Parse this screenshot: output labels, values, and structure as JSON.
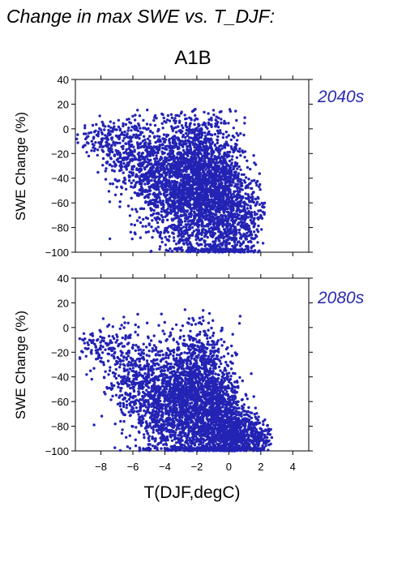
{
  "figure": {
    "title": "Change in max SWE vs. T_DJF:",
    "scenario": "A1B"
  },
  "colors": {
    "points": "#2323b4",
    "period_label": "#2a2ab0",
    "axes": "#000000"
  },
  "chart_data": [
    {
      "type": "scatter",
      "period": "2040s",
      "xlabel": "",
      "ylabel": "SWE Change (%)",
      "xlim": [
        -9.6,
        5.0
      ],
      "ylim": [
        -100,
        40
      ],
      "xticks": [
        -8,
        -6,
        -4,
        -2,
        0,
        2,
        4
      ],
      "yticks": [
        -100,
        -80,
        -60,
        -40,
        -20,
        0,
        20,
        40
      ],
      "grid": false,
      "series": [
        {
          "clusters": [
            {
              "x": -7.8,
              "y": -8,
              "sx": 0.9,
              "sy": 8,
              "n": 120
            },
            {
              "x": -6.2,
              "y": -22,
              "sx": 0.8,
              "sy": 16,
              "n": 260
            },
            {
              "x": -4.6,
              "y": -38,
              "sx": 0.9,
              "sy": 22,
              "n": 520
            },
            {
              "x": -3.0,
              "y": -45,
              "sx": 0.9,
              "sy": 26,
              "n": 900
            },
            {
              "x": -1.6,
              "y": -42,
              "sx": 0.8,
              "sy": 30,
              "n": 1100
            },
            {
              "x": -0.4,
              "y": -55,
              "sx": 0.7,
              "sy": 28,
              "n": 700
            },
            {
              "x": 0.6,
              "y": -72,
              "sx": 0.6,
              "sy": 18,
              "n": 300
            },
            {
              "x": 1.6,
              "y": -70,
              "sx": 0.4,
              "sy": 16,
              "n": 90
            }
          ],
          "x_range": [
            -9.6,
            2.3
          ],
          "y_range": [
            -100,
            16
          ]
        }
      ]
    },
    {
      "type": "scatter",
      "period": "2080s",
      "xlabel": "T(DJF,degC)",
      "ylabel": "SWE Change (%)",
      "xlim": [
        -9.6,
        5.0
      ],
      "ylim": [
        -100,
        40
      ],
      "xticks": [
        -8,
        -6,
        -4,
        -2,
        0,
        2,
        4
      ],
      "yticks": [
        -100,
        -80,
        -60,
        -40,
        -20,
        0,
        20,
        40
      ],
      "grid": false,
      "series": [
        {
          "clusters": [
            {
              "x": -8.0,
              "y": -15,
              "sx": 0.9,
              "sy": 8,
              "n": 110
            },
            {
              "x": -6.2,
              "y": -38,
              "sx": 0.8,
              "sy": 20,
              "n": 250
            },
            {
              "x": -4.6,
              "y": -58,
              "sx": 0.9,
              "sy": 22,
              "n": 520
            },
            {
              "x": -3.0,
              "y": -62,
              "sx": 0.9,
              "sy": 24,
              "n": 900
            },
            {
              "x": -1.6,
              "y": -55,
              "sx": 0.8,
              "sy": 30,
              "n": 1000
            },
            {
              "x": -0.4,
              "y": -75,
              "sx": 0.7,
              "sy": 22,
              "n": 800
            },
            {
              "x": 0.6,
              "y": -88,
              "sx": 0.6,
              "sy": 10,
              "n": 400
            },
            {
              "x": 1.8,
              "y": -90,
              "sx": 0.5,
              "sy": 8,
              "n": 160
            }
          ],
          "x_range": [
            -9.6,
            2.7
          ],
          "y_range": [
            -100,
            17
          ]
        }
      ]
    }
  ]
}
